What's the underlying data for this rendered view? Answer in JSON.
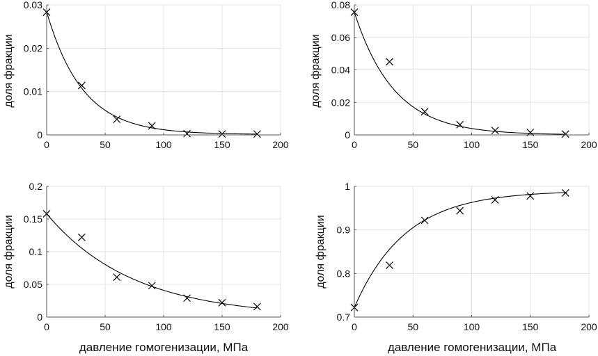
{
  "chart_data": [
    {
      "type": "scatter",
      "ylabel": "доля фракции",
      "xlabel": "",
      "xlim": [
        0,
        200
      ],
      "ylim": [
        0,
        0.03
      ],
      "xticks": [
        "0",
        "50",
        "100",
        "150",
        "200"
      ],
      "yticks": [
        "0",
        "0.01",
        "0.02",
        "0.03"
      ],
      "grid": true,
      "points": {
        "x": [
          0,
          30,
          60,
          90,
          120,
          150,
          180
        ],
        "y": [
          0.0283,
          0.0114,
          0.0036,
          0.0021,
          0.0003,
          0.0002,
          0.0002
        ]
      },
      "fit": {
        "kind": "exponential",
        "a": 0.0283,
        "k": 0.0325,
        "c": 0.0001
      }
    },
    {
      "type": "scatter",
      "ylabel": "доля фракции",
      "xlabel": "",
      "xlim": [
        0,
        200
      ],
      "ylim": [
        0,
        0.08
      ],
      "xticks": [
        "0",
        "50",
        "100",
        "150",
        "200"
      ],
      "yticks": [
        "0",
        "0.02",
        "0.04",
        "0.06",
        "0.08"
      ],
      "grid": true,
      "points": {
        "x": [
          0,
          30,
          60,
          90,
          120,
          150,
          180
        ],
        "y": [
          0.0755,
          0.045,
          0.0143,
          0.0063,
          0.0027,
          0.0015,
          0.0005
        ]
      },
      "fit": {
        "kind": "exponential",
        "a": 0.0755,
        "k": 0.0295,
        "c": 0.0
      }
    },
    {
      "type": "scatter",
      "ylabel": "доля фракции",
      "xlabel": "давление гомогенизации, МПа",
      "xlim": [
        0,
        200
      ],
      "ylim": [
        0,
        0.2
      ],
      "xticks": [
        "0",
        "50",
        "100",
        "150",
        "200"
      ],
      "yticks": [
        "0",
        "0.05",
        "0.1",
        "0.15",
        "0.2"
      ],
      "grid": true,
      "points": {
        "x": [
          0,
          30,
          60,
          90,
          120,
          150,
          180
        ],
        "y": [
          0.158,
          0.122,
          0.061,
          0.048,
          0.029,
          0.022,
          0.016
        ]
      },
      "fit": {
        "kind": "exponential",
        "a": 0.158,
        "k": 0.0135,
        "c": 0.0
      }
    },
    {
      "type": "scatter",
      "ylabel": "доля фракции",
      "xlabel": "давление гомогенизации, МПа",
      "xlim": [
        0,
        200
      ],
      "ylim": [
        0.7,
        1.0
      ],
      "xticks": [
        "0",
        "50",
        "100",
        "150",
        "200"
      ],
      "yticks": [
        "0.7",
        "0.8",
        "0.9",
        "1"
      ],
      "grid": true,
      "points": {
        "x": [
          0,
          30,
          60,
          90,
          120,
          150,
          180
        ],
        "y": [
          0.722,
          0.819,
          0.922,
          0.944,
          0.969,
          0.978,
          0.985
        ]
      },
      "fit": {
        "kind": "saturation",
        "a": 0.722,
        "b": 0.99,
        "k": 0.023
      }
    }
  ]
}
